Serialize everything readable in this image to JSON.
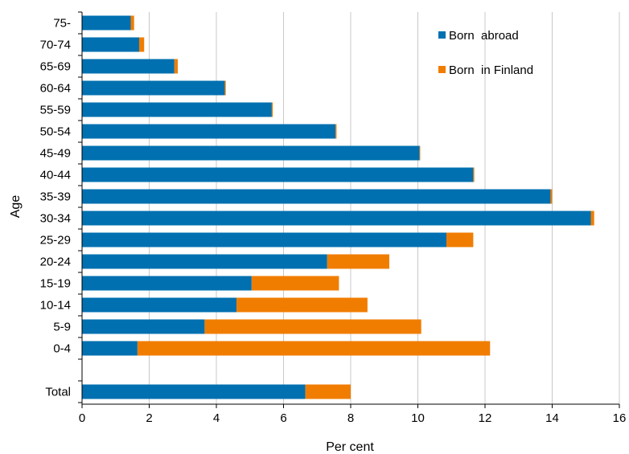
{
  "chart_data": {
    "type": "bar",
    "orientation": "horizontal",
    "stacked": true,
    "categories": [
      "75-",
      "70-74",
      "65-69",
      "60-64",
      "55-59",
      "50-54",
      "45-49",
      "40-44",
      "35-39",
      "30-34",
      "25-29",
      "20-24",
      "15-19",
      "10-14",
      "5-9",
      "0-4",
      "",
      "Total"
    ],
    "series": [
      {
        "name": "Born  abroad",
        "color": "#0070b0",
        "values": [
          1.45,
          1.7,
          2.75,
          4.25,
          5.65,
          7.55,
          10.05,
          11.65,
          13.95,
          15.15,
          10.85,
          7.3,
          5.05,
          4.6,
          3.65,
          1.65,
          null,
          6.65
        ]
      },
      {
        "name": "Born  in Finland",
        "color": "#f07d00",
        "values": [
          0.1,
          0.15,
          0.1,
          0.03,
          0.03,
          0.03,
          0.02,
          0.03,
          0.05,
          0.1,
          0.8,
          1.85,
          2.6,
          3.9,
          6.45,
          10.5,
          null,
          1.35
        ]
      }
    ],
    "xlabel": "Per cent",
    "ylabel": "Age",
    "xlim": [
      0,
      16
    ],
    "xticks": [
      0,
      2,
      4,
      6,
      8,
      10,
      12,
      14,
      16
    ],
    "grid": "vertical",
    "legend": "top-right"
  }
}
